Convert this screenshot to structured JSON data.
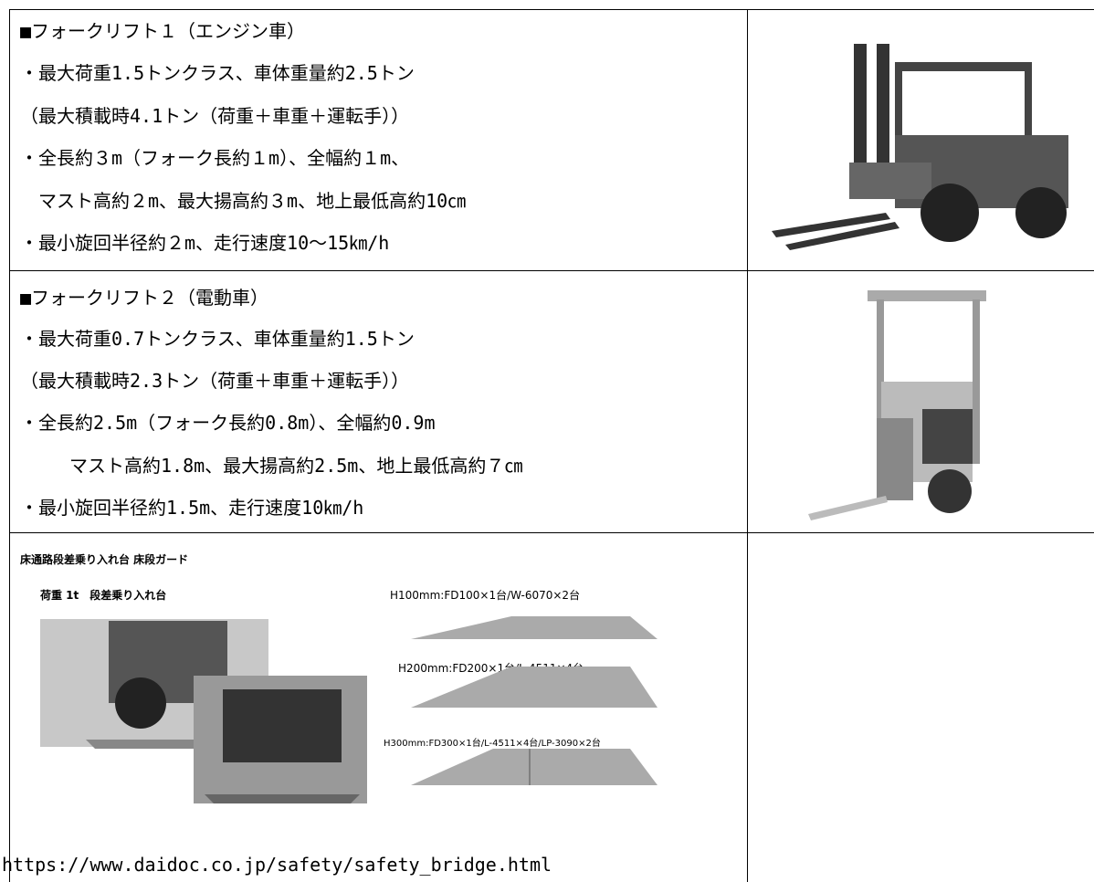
{
  "table": {
    "rows": [
      {
        "lines": [
          "■フォークリフト１（エンジン車）",
          "・最大荷重1.5トンクラス、車体重量約2.5トン",
          "（最大積載時4.1トン（荷重＋車重＋運転手））",
          "・全長約３m（フォーク長約１m）、全幅約１m、",
          "マスト高約２m、最大揚高約３m、地上最低高約10㎝",
          "・最小旋回半径約２m、走行速度10～15㎞/h"
        ]
      },
      {
        "lines": [
          "■フォークリフト２（電動車）",
          "・最大荷重0.7トンクラス、車体重量約1.5トン",
          "（最大積載時2.3トン（荷重＋車重＋運転手））",
          "・全長約2.5m（フォーク長約0.8m）、全幅約0.9m",
          "マスト高約1.8m、最大揚高約2.5m、地上最低高約７㎝",
          "・最小旋回半径約1.5m、走行速度10㎞/h"
        ]
      },
      {
        "figure": {
          "title": "床通路段差乗り入れ台 床段ガード",
          "caption": "荷重 1t　段差乗り入れ台",
          "labels": [
            "H100mm:FD100×1台/W-6070×2台",
            "H200mm:FD200×1台/L-4511×4台",
            "H300mm:FD300×1台/L-4511×4台/LP-3090×2台"
          ]
        },
        "url": "https://www.daidoc.co.jp/safety/safety_bridge.html"
      }
    ]
  }
}
